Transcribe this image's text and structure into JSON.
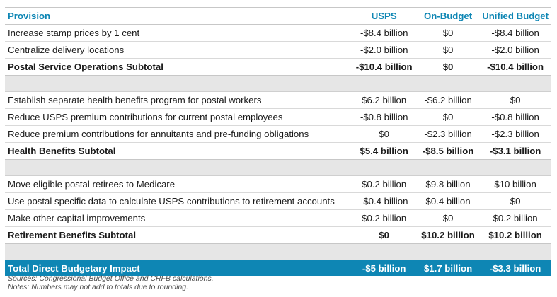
{
  "header": {
    "provision": "Provision",
    "usps": "USPS",
    "on_budget": "On-Budget",
    "unified": "Unified Budget"
  },
  "rows": [
    {
      "provision": "Increase stamp prices by 1 cent",
      "usps": "-$8.4 billion",
      "on_budget": "$0",
      "unified": "-$8.4 billion"
    },
    {
      "provision": "Centralize delivery locations",
      "usps": "-$2.0 billion",
      "on_budget": "$0",
      "unified": "-$2.0 billion"
    },
    {
      "provision": "Postal Service Operations Subtotal",
      "usps": "-$10.4 billion",
      "on_budget": "$0",
      "unified": "-$10.4 billion"
    },
    {
      "provision": "Establish separate health benefits program for postal workers",
      "usps": "$6.2 billion",
      "on_budget": "-$6.2 billion",
      "unified": "$0"
    },
    {
      "provision": "Reduce USPS premium contributions for current postal employees",
      "usps": "-$0.8 billion",
      "on_budget": "$0",
      "unified": "-$0.8 billion"
    },
    {
      "provision": "Reduce premium contributions for annuitants and pre-funding obligations",
      "usps": "$0",
      "on_budget": "-$2.3 billion",
      "unified": "-$2.3 billion"
    },
    {
      "provision": "Health Benefits Subtotal",
      "usps": "$5.4 billion",
      "on_budget": "-$8.5 billion",
      "unified": "-$3.1 billion"
    },
    {
      "provision": "Move eligible postal retirees to Medicare",
      "usps": "$0.2 billion",
      "on_budget": "$9.8 billion",
      "unified": "$10 billion"
    },
    {
      "provision": "Use postal specific data to calculate USPS contributions to retirement accounts",
      "usps": "-$0.4 billion",
      "on_budget": "$0.4 billion",
      "unified": "$0"
    },
    {
      "provision": "Make other capital improvements",
      "usps": "$0.2 billion",
      "on_budget": "$0",
      "unified": "$0.2 billion"
    },
    {
      "provision": "Retirement Benefits Subtotal",
      "usps": "$0",
      "on_budget": "$10.2 billion",
      "unified": "$10.2 billion"
    },
    {
      "provision": "Total Direct Budgetary Impact",
      "usps": "-$5 billion",
      "on_budget": "$1.7 billion",
      "unified": "-$3.3 billion"
    }
  ],
  "notes": {
    "sources": "Sources: Congressional Budget Office and CRFB calculations.",
    "rounding": "Notes: Numbers may not add to totals due to rounding."
  },
  "colors": {
    "accent": "#0e86b4",
    "spacer": "#e6e6e6"
  }
}
